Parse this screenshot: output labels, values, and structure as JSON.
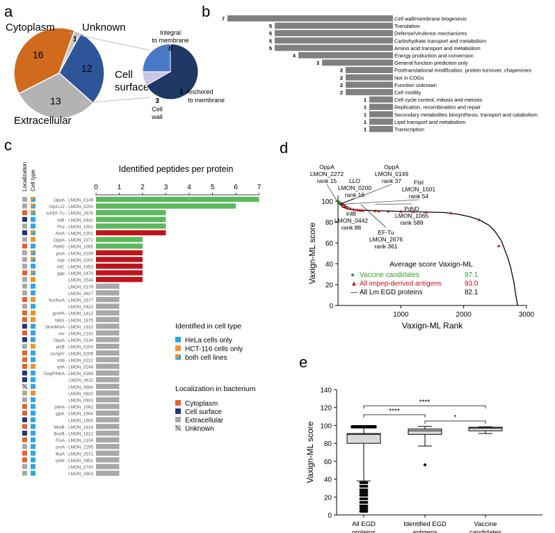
{
  "panel_labels": {
    "a": "a",
    "b": "b",
    "c": "c",
    "d": "d",
    "e": "e"
  },
  "chart_data": [
    {
      "panel": "a",
      "type": "pie",
      "labels": [
        "Cytoplasm",
        "Unknown",
        "Cell surface",
        "Extracellular"
      ],
      "values": [
        16,
        1,
        12,
        13
      ],
      "colors": {
        "Cytoplasm": "#d06a1c",
        "Unknown": "#c4c4c4",
        "Cell surface": "#2e5599",
        "Extracellular": "#b3b3b3"
      },
      "callout_labels": [
        "Cell",
        "surface"
      ],
      "sub_pie": {
        "labels": [
          "Integral to membrane",
          "Anchored to membrane",
          "Cell wall"
        ],
        "label_lines": {
          "Integral to membrane": [
            "Integral",
            "to membrane"
          ],
          "Anchored to membrane": [
            "Anchored",
            "to membrane"
          ],
          "Cell wall": [
            "Cell",
            "wall"
          ]
        },
        "values": [
          8,
          1,
          3
        ],
        "colors": [
          "#1f3866",
          "#c8c8e6",
          "#4a78c8"
        ]
      }
    },
    {
      "panel": "b",
      "type": "bar",
      "orientation": "horizontal",
      "categories": [
        "Cell wall/membrane biogenesis",
        "Translation",
        "Defense/virulence mechanisms",
        "Carbohydrate transport and metabolism",
        "Amino acid transport and metabolism",
        "Energy production and conversion",
        "General function prediction only",
        "Posttranslational modification, protein turnover, chaperones",
        "Not in COGs",
        "Function unknown",
        "Cell motility",
        "Cell cycle control, mitosis and meiosis",
        "Replication, recombination and repair",
        "Secondary metabolites biosynthesis, transport and catabolism",
        "Lipid transport and metabolism",
        "Transcription"
      ],
      "values": [
        7,
        5,
        5,
        5,
        5,
        4,
        3,
        2,
        2,
        2,
        2,
        1,
        1,
        1,
        1,
        1
      ],
      "color": "#808080"
    },
    {
      "panel": "c",
      "type": "bar",
      "orientation": "horizontal",
      "title": "Identified peptides per protein",
      "column_headers": [
        "Localization",
        "Cell type"
      ],
      "xlim": [
        0,
        7
      ],
      "xticks": [
        0,
        1,
        2,
        3,
        4,
        5,
        6,
        7
      ],
      "proteins": [
        "OppA - LMON_0149",
        "hly/LLO - LMON_0200",
        "tuf/EF-Tu - LMON_2676",
        "inlB - LMON_0442",
        "FtsI - LMON_1501",
        "ActA - LMON_0202",
        "OppA - LMON_2272",
        "PdhD - LMON_1065",
        "plcA - LMON_0199",
        "mpl - LMON_0201",
        "inlC - LMON_1853",
        "gap - LMON_2470",
        "LMON_2534",
        "LMON_0179",
        "LMON_0627",
        "fus/fusA - LMON_2677",
        "LMON_0423",
        "gcvPA - LMON_1412",
        "fabG - LMON_1875",
        "SlrA/MntA - LMON_1915",
        "rex - LMON_2142",
        "OppA - LMON_0134",
        "plcB - LMON_0203",
        "ctc/rplY - LMON_0209",
        "mfd - LMON_0212",
        "rplA - LMON_0249",
        "DegP/HtrA - LMON_0294",
        "LMON_0611",
        "LMON_0884",
        "LMON_0920",
        "LMON_0933",
        "pdhA - LMON_1062",
        "glpK - LMON_1604",
        "LMON_1605",
        "MreB - LMON_1614",
        "BceB - LMON_1812",
        "FtsA - LMON_2104",
        "prsA - LMON_2295",
        "fbaA - LMON_2571",
        "rplW - LMON_2651",
        "LMON_2730",
        "LMON_2803"
      ],
      "values": [
        7,
        6,
        3,
        3,
        3,
        3,
        2,
        2,
        2,
        2,
        2,
        2,
        2,
        1,
        1,
        1,
        1,
        1,
        1,
        1,
        1,
        1,
        1,
        1,
        1,
        1,
        1,
        1,
        1,
        1,
        1,
        1,
        1,
        1,
        1,
        1,
        1,
        1,
        1,
        1,
        1,
        1
      ],
      "bar_groups": [
        "green",
        "green",
        "green",
        "green",
        "green",
        "red",
        "green",
        "green",
        "red",
        "red",
        "red",
        "red",
        "red",
        "gray",
        "gray",
        "gray",
        "gray",
        "gray",
        "gray",
        "gray",
        "gray",
        "gray",
        "gray",
        "gray",
        "gray",
        "gray",
        "gray",
        "gray",
        "gray",
        "gray",
        "gray",
        "gray",
        "gray",
        "gray",
        "gray",
        "gray",
        "gray",
        "gray",
        "gray",
        "gray",
        "gray",
        "gray"
      ],
      "bar_colors": {
        "green": "#5cb85c",
        "red": "#c0141c",
        "gray": "#a8a8a8"
      },
      "localization": [
        "extracellular",
        "extracellular",
        "cytoplasm",
        "surface",
        "extracellular",
        "surface",
        "extracellular",
        "cytoplasm",
        "extracellular",
        "extracellular",
        "extracellular",
        "cytoplasm",
        "extracellular",
        "extracellular",
        "extracellular",
        "cytoplasm",
        "extracellular",
        "cytoplasm",
        "cytoplasm",
        "surface",
        "cytoplasm",
        "surface",
        "extracellular",
        "cytoplasm",
        "cytoplasm",
        "cytoplasm",
        "surface",
        "surface",
        "unknown",
        "extracellular",
        "extracellular",
        "cytoplasm",
        "cytoplasm",
        "surface",
        "cytoplasm",
        "surface",
        "cytoplasm",
        "extracellular",
        "cytoplasm",
        "cytoplasm",
        "extracellular",
        "extracellular"
      ],
      "cell_type": [
        "both",
        "both",
        "both",
        "hela",
        "hela",
        "both",
        "hct",
        "hela",
        "both",
        "both",
        "hela",
        "both",
        "hct",
        "hela",
        "hela",
        "hct",
        "hela",
        "hct",
        "hct",
        "hela",
        "hela",
        "hela",
        "hct",
        "hela",
        "hela",
        "hct",
        "hela",
        "hela",
        "hela",
        "hct",
        "hela",
        "hela",
        "hela",
        "hela",
        "hela",
        "hela",
        "hela",
        "hela",
        "hela",
        "hela",
        "hela",
        "hela"
      ],
      "legend_cell_type": {
        "title": "Identified in cell type",
        "items": [
          "HeLa cells only",
          "HCT-116 cells only",
          "both cell lines"
        ],
        "colors": [
          "#2ea6e6",
          "#f0922a",
          "split"
        ]
      },
      "legend_localization": {
        "title": "Localization in bacterium",
        "items": [
          "Cytoplasm",
          "Cell surface",
          "Extracellular",
          "Unknown"
        ],
        "colors": [
          "#e8602c",
          "#26337a",
          "#a8a8a8",
          "striped"
        ]
      },
      "colors": {
        "cytoplasm": "#e8602c",
        "surface": "#26337a",
        "extracellular": "#a8a8a8",
        "hela": "#2ea6e6",
        "hct": "#f0922a"
      }
    },
    {
      "panel": "d",
      "type": "line",
      "xlabel": "Vaxign-ML Rank",
      "ylabel": "Vaxign-ML score",
      "xlim": [
        0,
        3000
      ],
      "ylim": [
        0,
        100
      ],
      "xticks": [
        1000,
        2000,
        3000
      ],
      "yticks": [
        0,
        20,
        40,
        60,
        80,
        100
      ],
      "curve": {
        "x": [
          0,
          30,
          80,
          150,
          300,
          500,
          800,
          1100,
          1400,
          1700,
          1900,
          2100,
          2250,
          2400,
          2500,
          2600,
          2700,
          2750,
          2800,
          2830,
          2850,
          2860
        ],
        "y": [
          99,
          97,
          94,
          92.5,
          91.5,
          91,
          90.5,
          90,
          89.5,
          89,
          87.5,
          85,
          82,
          77,
          71,
          62,
          46,
          36,
          22,
          10,
          3,
          0
        ]
      },
      "red_points": {
        "x": [
          30,
          55,
          80,
          110,
          130,
          160,
          200,
          250,
          300,
          340,
          361,
          400,
          589,
          650,
          800,
          1000,
          1200,
          1400,
          1800,
          2250,
          2560
        ],
        "y": [
          98,
          97.5,
          96.5,
          95,
          94,
          93,
          92.5,
          92,
          91.5,
          91.2,
          91,
          90.8,
          90.5,
          90.3,
          90.2,
          90,
          89.8,
          89.6,
          88.5,
          82,
          57
        ]
      },
      "green_points": {
        "x": [
          2,
          5,
          9,
          12,
          15,
          20,
          37
        ],
        "y": [
          99.8,
          99.6,
          99.4,
          99.2,
          99,
          98.7,
          97.8
        ]
      },
      "annotations": [
        {
          "lines": [
            "OppA",
            "LMON_2272",
            "rank 15"
          ],
          "rank": 15
        },
        {
          "lines": [
            "LLO",
            "LMON_0200",
            "rank 16"
          ],
          "rank": 16
        },
        {
          "lines": [
            "OppA",
            "LMON_0149",
            "rank 37"
          ],
          "rank": 37
        },
        {
          "lines": [
            "FtsI",
            "LMON_1501",
            "rank 54"
          ],
          "rank": 54
        },
        {
          "lines": [
            "inlB",
            "LMON_0442",
            "rank 88"
          ],
          "rank": 88
        },
        {
          "lines": [
            "PdhD",
            "LMON_1065",
            "rank 589"
          ],
          "rank": 589
        },
        {
          "lines": [
            "EF-Tu",
            "LMON_2676",
            "rank 361"
          ],
          "rank": 361
        }
      ],
      "legend_title": "Average score Vaxign-ML",
      "legend": [
        {
          "label": "Vaccine candidates",
          "value": "97.1",
          "color": "#2aa02a",
          "marker": "●"
        },
        {
          "label": "All impep-derived antigens",
          "value": "93.0",
          "color": "#c0141c",
          "marker": "▲"
        },
        {
          "label": "All Lm EGD proteins",
          "value": "82.1",
          "color": "#000000",
          "marker": "—"
        }
      ]
    },
    {
      "panel": "e",
      "type": "box",
      "ylabel": "Vaxign-ML score",
      "ylim": [
        0,
        140
      ],
      "yticks": [
        0,
        20,
        40,
        60,
        80,
        100,
        120,
        140
      ],
      "categories": [
        [
          "All EGD",
          "proteins"
        ],
        [
          "Identified EGD",
          "antigens"
        ],
        [
          "Vaccine",
          "candidates"
        ]
      ],
      "boxes": [
        {
          "q1": 80,
          "median": 90,
          "q3": 91,
          "whisker_low": 38,
          "whisker_high": 99
        },
        {
          "q1": 90,
          "median": 94,
          "q3": 96,
          "whisker_low": 77,
          "whisker_high": 99
        },
        {
          "q1": 94,
          "median": 97,
          "q3": 98,
          "whisker_low": 91,
          "whisker_high": 98.5
        }
      ],
      "outliers_low_all": [
        36,
        32,
        28,
        25,
        22,
        18,
        14,
        10,
        7,
        4
      ],
      "outliers_high_all": [
        98,
        98.5,
        99
      ],
      "outliers_antigens": [
        56
      ],
      "significance": [
        {
          "from": 0,
          "to": 2,
          "label": "****"
        },
        {
          "from": 0,
          "to": 1,
          "label": "****"
        },
        {
          "from": 1,
          "to": 2,
          "label": "*"
        }
      ]
    }
  ]
}
